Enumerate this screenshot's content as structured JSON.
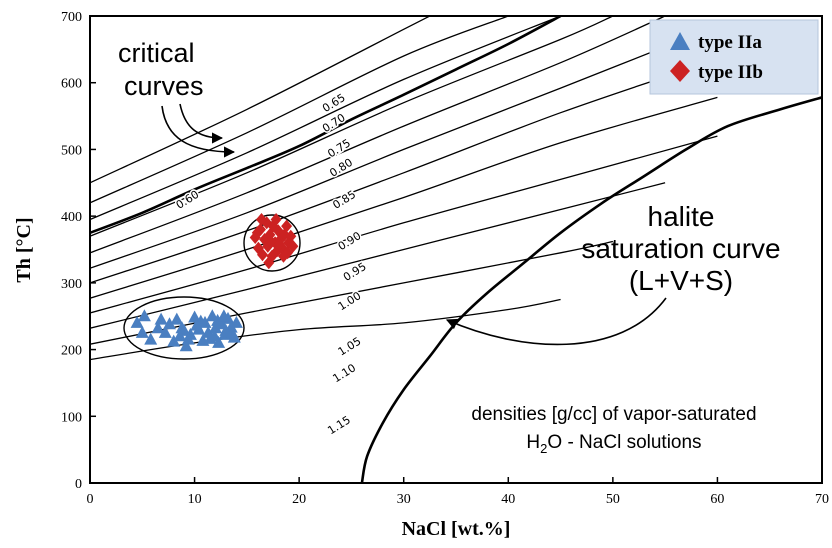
{
  "chart_data": {
    "type": "scatter",
    "title": "",
    "xlabel": "NaCl [wt.%]",
    "ylabel": "Th [°C]",
    "xlim": [
      0,
      70
    ],
    "ylim": [
      0,
      700
    ],
    "xticks": [
      0,
      10,
      20,
      30,
      40,
      50,
      60,
      70
    ],
    "yticks": [
      0,
      100,
      200,
      300,
      400,
      500,
      600,
      700
    ],
    "legend_position": "top-right",
    "series": [
      {
        "name": "type IIa",
        "marker": "triangle",
        "color": "#4a7fc1",
        "points": [
          [
            4.5,
            240
          ],
          [
            5.0,
            225
          ],
          [
            5.2,
            250
          ],
          [
            5.8,
            215
          ],
          [
            6.5,
            232
          ],
          [
            7.2,
            225
          ],
          [
            8.0,
            212
          ],
          [
            8.3,
            245
          ],
          [
            8.8,
            232
          ],
          [
            9.2,
            205
          ],
          [
            9.6,
            222
          ],
          [
            10.0,
            248
          ],
          [
            10.4,
            230
          ],
          [
            10.8,
            213
          ],
          [
            11.0,
            240
          ],
          [
            11.3,
            225
          ],
          [
            11.7,
            250
          ],
          [
            12.0,
            232
          ],
          [
            12.3,
            210
          ],
          [
            12.6,
            238
          ],
          [
            12.9,
            222
          ],
          [
            13.2,
            246
          ],
          [
            13.5,
            233
          ],
          [
            13.8,
            218
          ],
          [
            14.0,
            240
          ],
          [
            10.2,
            236
          ],
          [
            9.0,
            228
          ],
          [
            11.5,
            216
          ],
          [
            12.2,
            243
          ],
          [
            13.0,
            228
          ],
          [
            7.6,
            238
          ],
          [
            8.6,
            220
          ],
          [
            10.6,
            242
          ],
          [
            11.9,
            220
          ],
          [
            12.8,
            250
          ],
          [
            9.4,
            215
          ],
          [
            6.8,
            245
          ],
          [
            13.6,
            224
          ]
        ]
      },
      {
        "name": "type IIb",
        "marker": "diamond",
        "color": "#cc2222",
        "points": [
          [
            15.8,
            368
          ],
          [
            16.1,
            352
          ],
          [
            16.3,
            380
          ],
          [
            16.5,
            342
          ],
          [
            16.7,
            365
          ],
          [
            16.9,
            390
          ],
          [
            17.0,
            355
          ],
          [
            17.2,
            372
          ],
          [
            17.4,
            340
          ],
          [
            17.5,
            385
          ],
          [
            17.7,
            360
          ],
          [
            17.9,
            348
          ],
          [
            18.0,
            378
          ],
          [
            18.2,
            365
          ],
          [
            18.4,
            352
          ],
          [
            18.6,
            372
          ],
          [
            18.8,
            385
          ],
          [
            19.0,
            360
          ],
          [
            19.2,
            370
          ],
          [
            19.4,
            355
          ],
          [
            16.4,
            395
          ],
          [
            17.1,
            330
          ],
          [
            17.8,
            395
          ],
          [
            18.5,
            340
          ],
          [
            16.0,
            375
          ],
          [
            17.3,
            362
          ],
          [
            18.1,
            358
          ],
          [
            18.9,
            345
          ]
        ]
      }
    ],
    "critical_curve": [
      [
        0,
        375
      ],
      [
        5,
        405
      ],
      [
        10,
        440
      ],
      [
        15,
        472
      ],
      [
        20,
        505
      ],
      [
        25,
        545
      ],
      [
        30,
        582
      ],
      [
        35,
        620
      ],
      [
        40,
        658
      ],
      [
        45,
        700
      ]
    ],
    "halite_curve": [
      [
        26,
        0
      ],
      [
        26.5,
        40
      ],
      [
        28,
        90
      ],
      [
        30,
        140
      ],
      [
        32.5,
        190
      ],
      [
        35,
        240
      ],
      [
        38,
        285
      ],
      [
        41.5,
        330
      ],
      [
        45,
        375
      ],
      [
        49,
        420
      ],
      [
        53,
        460
      ],
      [
        57,
        500
      ],
      [
        61,
        535
      ],
      [
        66,
        560
      ],
      [
        70,
        578
      ]
    ],
    "isochores": [
      {
        "label": "0.60",
        "points": [
          [
            0,
            450
          ],
          [
            15,
            560
          ],
          [
            30,
            680
          ],
          [
            32.5,
            700
          ]
        ]
      },
      {
        "label": "0.65",
        "points": [
          [
            0,
            420
          ],
          [
            15,
            525
          ],
          [
            30,
            640
          ],
          [
            40,
            700
          ]
        ]
      },
      {
        "label": "0.70",
        "points": [
          [
            0,
            395
          ],
          [
            15,
            495
          ],
          [
            30,
            605
          ],
          [
            45,
            700
          ]
        ]
      },
      {
        "label": "0.75",
        "points": [
          [
            0,
            370
          ],
          [
            15,
            465
          ],
          [
            30,
            570
          ],
          [
            45,
            665
          ],
          [
            50,
            700
          ]
        ]
      },
      {
        "label": "0.80",
        "points": [
          [
            0,
            345
          ],
          [
            15,
            435
          ],
          [
            30,
            535
          ],
          [
            45,
            630
          ],
          [
            55,
            700
          ]
        ]
      },
      {
        "label": "0.85",
        "points": [
          [
            0,
            322
          ],
          [
            15,
            405
          ],
          [
            30,
            500
          ],
          [
            45,
            592
          ],
          [
            60,
            685
          ]
        ]
      },
      {
        "label": "0.90",
        "points": [
          [
            0,
            300
          ],
          [
            15,
            378
          ],
          [
            30,
            465
          ],
          [
            45,
            555
          ],
          [
            60,
            635
          ]
        ]
      },
      {
        "label": "0.95",
        "points": [
          [
            0,
            277
          ],
          [
            15,
            350
          ],
          [
            30,
            428
          ],
          [
            45,
            510
          ],
          [
            60,
            578
          ]
        ]
      },
      {
        "label": "1.00",
        "points": [
          [
            0,
            255
          ],
          [
            15,
            320
          ],
          [
            30,
            390
          ],
          [
            45,
            455
          ],
          [
            60,
            520
          ]
        ]
      },
      {
        "label": "1.05",
        "points": [
          [
            0,
            232
          ],
          [
            15,
            290
          ],
          [
            30,
            350
          ],
          [
            45,
            410
          ],
          [
            55,
            450
          ]
        ]
      },
      {
        "label": "1.10",
        "points": [
          [
            0,
            208
          ],
          [
            15,
            255
          ],
          [
            30,
            300
          ],
          [
            45,
            345
          ],
          [
            50,
            362
          ]
        ]
      },
      {
        "label": "1.15",
        "points": [
          [
            0,
            185
          ],
          [
            10,
            210
          ],
          [
            20,
            230
          ],
          [
            30,
            240
          ],
          [
            40,
            260
          ],
          [
            45,
            275
          ]
        ]
      }
    ],
    "iso_label_positions": [
      {
        "label": "0.60",
        "x": 9.5,
        "y": 420
      },
      {
        "label": "0.65",
        "x": 23.5,
        "y": 565
      },
      {
        "label": "0.70",
        "x": 23.5,
        "y": 535
      },
      {
        "label": "0.75",
        "x": 24.0,
        "y": 497
      },
      {
        "label": "0.80",
        "x": 24.2,
        "y": 468
      },
      {
        "label": "0.85",
        "x": 24.5,
        "y": 420
      },
      {
        "label": "0.90",
        "x": 25.0,
        "y": 358
      },
      {
        "label": "0.95",
        "x": 25.5,
        "y": 312
      },
      {
        "label": "1.00",
        "x": 25.0,
        "y": 268
      },
      {
        "label": "1.05",
        "x": 25.0,
        "y": 200
      },
      {
        "label": "1.10",
        "x": 24.5,
        "y": 160
      },
      {
        "label": "1.15",
        "x": 24.0,
        "y": 82
      }
    ],
    "annotations": {
      "critical_line1": "critical",
      "critical_line2": "curves",
      "halite_line1": "halite",
      "halite_line2": "saturation curve",
      "halite_line3": "(L+V+S)",
      "densities_line1": "densities [g/cc] of vapor-saturated",
      "densities_h": "H",
      "densities_sub": "2",
      "densities_rest": "O - NaCl solutions"
    }
  }
}
